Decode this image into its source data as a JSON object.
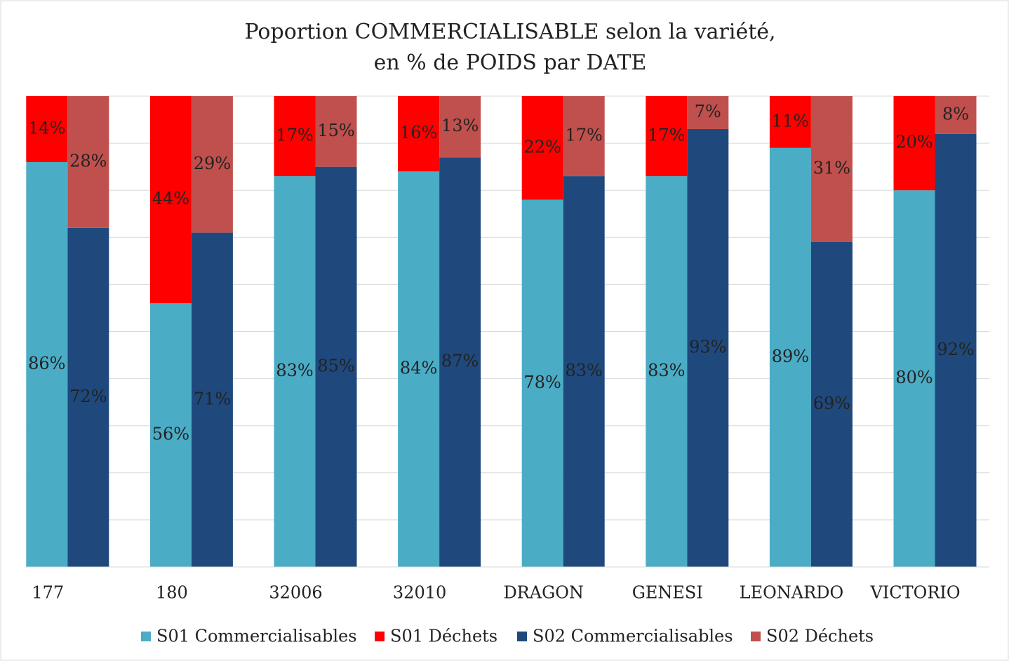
{
  "chart_data": {
    "type": "bar",
    "title": [
      "Poportion COMMERCIALISABLE selon la variété,",
      "en % de POIDS par DATE"
    ],
    "categories": [
      "177",
      "180",
      "32006",
      "32010",
      "DRAGON",
      "GENESI",
      "LEONARDO",
      "VICTORIO"
    ],
    "series": [
      {
        "name": "S01 Commercialisables",
        "color": "#4bacc6",
        "values": [
          86,
          56,
          83,
          84,
          78,
          83,
          89,
          80
        ],
        "value_labels": [
          "86%",
          "56%",
          "83%",
          "84%",
          "78%",
          "83%",
          "89%",
          "80%"
        ]
      },
      {
        "name": "S01 Déchets",
        "color": "#ff0000",
        "values": [
          14,
          44,
          17,
          16,
          22,
          17,
          11,
          20
        ],
        "value_labels": [
          "14%",
          "44%",
          "17%",
          "16%",
          "22%",
          "17%",
          "11%",
          "20%"
        ]
      },
      {
        "name": "S02 Commercialisables",
        "color": "#1f497d",
        "values": [
          72,
          71,
          85,
          87,
          83,
          93,
          69,
          92
        ],
        "value_labels": [
          "72%",
          "71%",
          "85%",
          "87%",
          "83%",
          "93%",
          "69%",
          "92%"
        ]
      },
      {
        "name": "S02 Déchets",
        "color": "#c0504d",
        "values": [
          28,
          29,
          15,
          13,
          17,
          7,
          31,
          8
        ],
        "value_labels": [
          "28%",
          "29%",
          "15%",
          "13%",
          "17%",
          "7%",
          "31%",
          "8%"
        ]
      }
    ],
    "ylim": [
      0,
      100
    ],
    "yticks": [
      0,
      10,
      20,
      30,
      40,
      50,
      60,
      70,
      80,
      90,
      100
    ],
    "grid": true,
    "legend": "bottom"
  }
}
